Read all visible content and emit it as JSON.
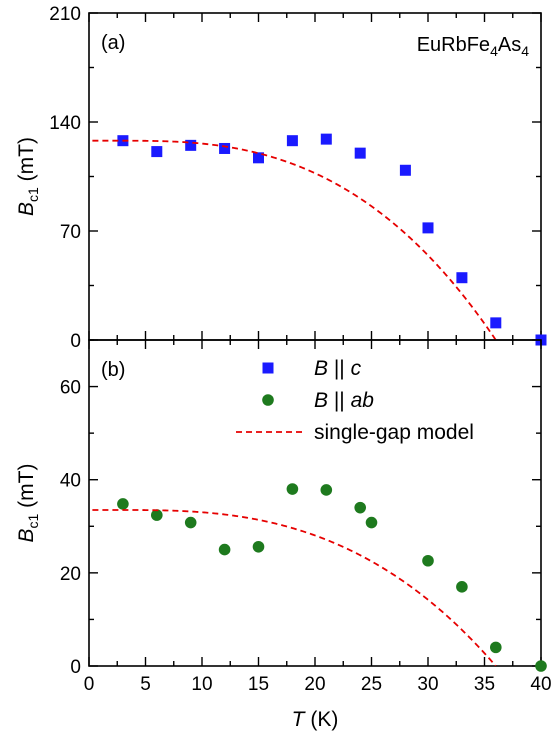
{
  "chart_data": [
    {
      "type": "scatter",
      "panel": "(a)",
      "annotation": "EuRbFe4As4",
      "annotation_parts": {
        "a": "EuRbFe",
        "b": "4",
        "c": "As",
        "d": "4"
      },
      "ylabel_main": "B",
      "ylabel_sub": "c1",
      "ylabel_unit": " (mT)",
      "xlim": [
        0,
        40
      ],
      "ylim": [
        0,
        210
      ],
      "yticks": [
        0,
        70,
        140,
        210
      ],
      "series": [
        {
          "name": "B || c",
          "marker": "square",
          "color": "#1a1aff",
          "x": [
            3,
            6,
            9,
            12,
            15,
            18,
            21,
            24,
            28,
            30,
            33,
            36,
            40
          ],
          "y": [
            128,
            121,
            125,
            123,
            117,
            128,
            129,
            120,
            109,
            72,
            40,
            11,
            0
          ]
        },
        {
          "name": "single-gap model",
          "style": "dashed",
          "color": "#e60000",
          "tc": 36,
          "b0": 128
        }
      ]
    },
    {
      "type": "scatter",
      "panel": "(b)",
      "ylabel_main": "B",
      "ylabel_sub": "c1",
      "ylabel_unit": " (mT)",
      "xlabel_main": "T",
      "xlabel_unit": " (K)",
      "xlim": [
        0,
        40
      ],
      "ylim": [
        0,
        70
      ],
      "xticks": [
        0,
        5,
        10,
        15,
        20,
        25,
        30,
        35,
        40
      ],
      "yticks": [
        0,
        20,
        40,
        60
      ],
      "series": [
        {
          "name": "B || ab",
          "marker": "circle",
          "color": "#1e7a1e",
          "x": [
            3,
            6,
            9,
            12,
            15,
            18,
            21,
            24,
            25,
            30,
            33,
            36,
            40
          ],
          "y": [
            34.8,
            32.4,
            30.8,
            25.0,
            25.6,
            38.0,
            37.8,
            34.0,
            30.8,
            22.6,
            17.0,
            4.0,
            0
          ]
        },
        {
          "name": "single-gap model",
          "style": "dashed",
          "color": "#e60000",
          "tc": 36,
          "b0": 33.5
        }
      ],
      "legend": {
        "placement": "top-right",
        "items": [
          {
            "marker": "square",
            "color": "#1a1aff",
            "italic": "B",
            "sep": " || ",
            "italic2": "c"
          },
          {
            "marker": "circle",
            "color": "#1e7a1e",
            "italic": "B",
            "sep": " || ",
            "italic2": "ab"
          },
          {
            "marker": "dash",
            "color": "#e60000",
            "text": "single-gap model"
          }
        ]
      }
    }
  ]
}
